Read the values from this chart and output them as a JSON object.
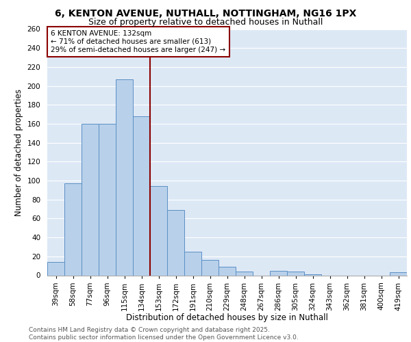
{
  "title_line1": "6, KENTON AVENUE, NUTHALL, NOTTINGHAM, NG16 1PX",
  "title_line2": "Size of property relative to detached houses in Nuthall",
  "xlabel": "Distribution of detached houses by size in Nuthall",
  "ylabel": "Number of detached properties",
  "categories": [
    "39sqm",
    "58sqm",
    "77sqm",
    "96sqm",
    "115sqm",
    "134sqm",
    "153sqm",
    "172sqm",
    "191sqm",
    "210sqm",
    "229sqm",
    "248sqm",
    "267sqm",
    "286sqm",
    "305sqm",
    "324sqm",
    "343sqm",
    "362sqm",
    "381sqm",
    "400sqm",
    "419sqm"
  ],
  "values": [
    14,
    97,
    160,
    160,
    207,
    168,
    94,
    69,
    25,
    16,
    9,
    4,
    0,
    5,
    4,
    1,
    0,
    0,
    0,
    0,
    3
  ],
  "bar_color": "#b8d0ea",
  "bar_edge_color": "#5a8fc4",
  "background_color": "#dde8f5",
  "grid_color": "#ffffff",
  "vline_index": 5,
  "vline_color": "#8b0000",
  "annotation_title": "6 KENTON AVENUE: 132sqm",
  "annotation_line2": "← 71% of detached houses are smaller (613)",
  "annotation_line3": "29% of semi-detached houses are larger (247) →",
  "annotation_box_color": "#ffffff",
  "annotation_border_color": "#8b0000",
  "ylim": [
    0,
    260
  ],
  "yticks": [
    0,
    20,
    40,
    60,
    80,
    100,
    120,
    140,
    160,
    180,
    200,
    220,
    240,
    260
  ],
  "footer_line1": "Contains HM Land Registry data © Crown copyright and database right 2025.",
  "footer_line2": "Contains public sector information licensed under the Open Government Licence v3.0.",
  "title_fontsize": 10,
  "subtitle_fontsize": 9,
  "axis_label_fontsize": 8.5,
  "tick_fontsize": 7.5,
  "annotation_fontsize": 7.5,
  "footer_fontsize": 6.5
}
